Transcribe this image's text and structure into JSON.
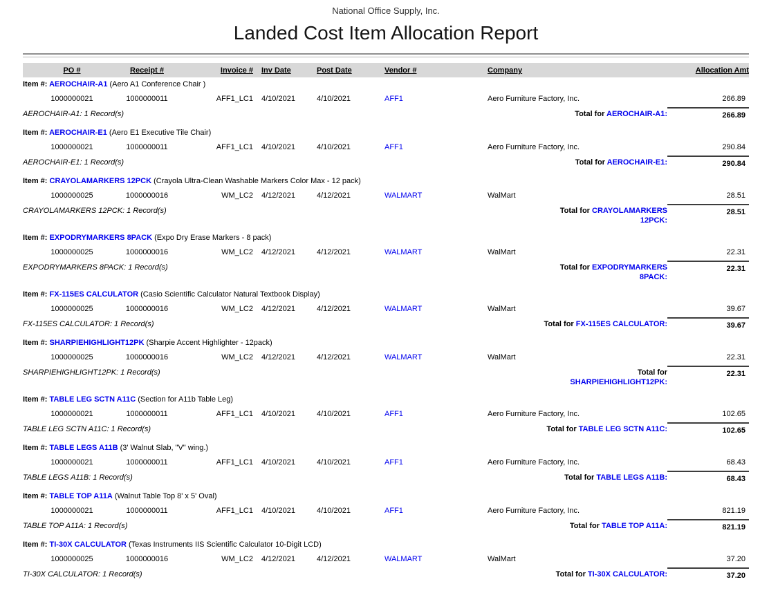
{
  "report": {
    "company_header": "National Office Supply, Inc.",
    "title": "Landed Cost Item Allocation Report",
    "item_label": "Item #:",
    "colors": {
      "link_blue": "#0000ee",
      "header_band": "#d8d8d8",
      "divider_gray": "#8f8f8f"
    },
    "columns": [
      "PO #",
      "Receipt #",
      "Invoice #",
      "Inv Date",
      "Post Date",
      "Vendor #",
      "Company",
      "Allocation Amt"
    ],
    "groups": [
      {
        "item_code": "AEROCHAIR-A1",
        "item_desc": "(Aero A1 Conference Chair )",
        "rows": [
          {
            "po": "1000000021",
            "receipt": "1000000011",
            "invoice": "AFF1_LC1",
            "inv_date": "4/10/2021",
            "post_date": "4/10/2021",
            "vendor": "AFF1",
            "company": "Aero Furniture Factory, Inc.",
            "amount": "266.89"
          }
        ],
        "record_count_line": "AEROCHAIR-A1: 1 Record(s)",
        "total_label_lines": [
          [
            {
              "t": "Total for ",
              "blue": false
            },
            {
              "t": "AEROCHAIR-A1:",
              "blue": true
            }
          ]
        ],
        "total_amount": "266.89"
      },
      {
        "item_code": "AEROCHAIR-E1",
        "item_desc": "(Aero E1 Executive Tile Chair)",
        "rows": [
          {
            "po": "1000000021",
            "receipt": "1000000011",
            "invoice": "AFF1_LC1",
            "inv_date": "4/10/2021",
            "post_date": "4/10/2021",
            "vendor": "AFF1",
            "company": "Aero Furniture Factory, Inc.",
            "amount": "290.84"
          }
        ],
        "record_count_line": "AEROCHAIR-E1: 1 Record(s)",
        "total_label_lines": [
          [
            {
              "t": "Total for ",
              "blue": false
            },
            {
              "t": "AEROCHAIR-E1:",
              "blue": true
            }
          ]
        ],
        "total_amount": "290.84"
      },
      {
        "item_code": "CRAYOLAMARKERS 12PCK",
        "item_desc": "(Crayola Ultra-Clean Washable Markers Color Max - 12 pack)",
        "rows": [
          {
            "po": "1000000025",
            "receipt": "1000000016",
            "invoice": "WM_LC2",
            "inv_date": "4/12/2021",
            "post_date": "4/12/2021",
            "vendor": "WALMART",
            "company": "WalMart",
            "amount": "28.51"
          }
        ],
        "record_count_line": "CRAYOLAMARKERS 12PCK: 1 Record(s)",
        "total_label_lines": [
          [
            {
              "t": "Total for ",
              "blue": false
            },
            {
              "t": "CRAYOLAMARKERS",
              "blue": true
            }
          ],
          [
            {
              "t": "12PCK:",
              "blue": true
            }
          ]
        ],
        "total_amount": "28.51"
      },
      {
        "item_code": "EXPODRYMARKERS 8PACK",
        "item_desc": "(Expo Dry Erase Markers - 8 pack)",
        "rows": [
          {
            "po": "1000000025",
            "receipt": "1000000016",
            "invoice": "WM_LC2",
            "inv_date": "4/12/2021",
            "post_date": "4/12/2021",
            "vendor": "WALMART",
            "company": "WalMart",
            "amount": "22.31"
          }
        ],
        "record_count_line": "EXPODRYMARKERS 8PACK: 1 Record(s)",
        "total_label_lines": [
          [
            {
              "t": "Total for ",
              "blue": false
            },
            {
              "t": "EXPODRYMARKERS",
              "blue": true
            }
          ],
          [
            {
              "t": "8PACK:",
              "blue": true
            }
          ]
        ],
        "total_amount": "22.31"
      },
      {
        "item_code": "FX-115ES CALCULATOR",
        "item_desc": "(Casio Scientific Calculator Natural Textbook Display)",
        "rows": [
          {
            "po": "1000000025",
            "receipt": "1000000016",
            "invoice": "WM_LC2",
            "inv_date": "4/12/2021",
            "post_date": "4/12/2021",
            "vendor": "WALMART",
            "company": "WalMart",
            "amount": "39.67"
          }
        ],
        "record_count_line": "FX-115ES CALCULATOR: 1 Record(s)",
        "total_label_lines": [
          [
            {
              "t": "Total for ",
              "blue": false
            },
            {
              "t": "FX-115ES CALCULATOR:",
              "blue": true
            }
          ]
        ],
        "total_amount": "39.67"
      },
      {
        "item_code": "SHARPIEHIGHLIGHT12PK",
        "item_desc": "(Sharpie Accent Highlighter - 12pack)",
        "rows": [
          {
            "po": "1000000025",
            "receipt": "1000000016",
            "invoice": "WM_LC2",
            "inv_date": "4/12/2021",
            "post_date": "4/12/2021",
            "vendor": "WALMART",
            "company": "WalMart",
            "amount": "22.31"
          }
        ],
        "record_count_line": "SHARPIEHIGHLIGHT12PK: 1 Record(s)",
        "total_label_lines": [
          [
            {
              "t": "Total for",
              "blue": false
            }
          ],
          [
            {
              "t": "SHARPIEHIGHLIGHT12PK:",
              "blue": true
            }
          ]
        ],
        "total_amount": "22.31"
      },
      {
        "item_code": "TABLE LEG SCTN A11C",
        "item_desc": "(Section for A11b Table Leg)",
        "rows": [
          {
            "po": "1000000021",
            "receipt": "1000000011",
            "invoice": "AFF1_LC1",
            "inv_date": "4/10/2021",
            "post_date": "4/10/2021",
            "vendor": "AFF1",
            "company": "Aero Furniture Factory, Inc.",
            "amount": "102.65"
          }
        ],
        "record_count_line": "TABLE LEG SCTN A11C: 1 Record(s)",
        "total_label_lines": [
          [
            {
              "t": "Total for ",
              "blue": false
            },
            {
              "t": "TABLE LEG SCTN A11C:",
              "blue": true
            }
          ]
        ],
        "total_amount": "102.65"
      },
      {
        "item_code": "TABLE LEGS A11B",
        "item_desc": "(3' Walnut Slab, \"V\" wing.)",
        "rows": [
          {
            "po": "1000000021",
            "receipt": "1000000011",
            "invoice": "AFF1_LC1",
            "inv_date": "4/10/2021",
            "post_date": "4/10/2021",
            "vendor": "AFF1",
            "company": "Aero Furniture Factory, Inc.",
            "amount": "68.43"
          }
        ],
        "record_count_line": "TABLE LEGS A11B: 1 Record(s)",
        "total_label_lines": [
          [
            {
              "t": "Total for ",
              "blue": false
            },
            {
              "t": "TABLE LEGS A11B:",
              "blue": true
            }
          ]
        ],
        "total_amount": "68.43"
      },
      {
        "item_code": "TABLE TOP A11A",
        "item_desc": "(Walnut Table Top 8' x 5' Oval)",
        "rows": [
          {
            "po": "1000000021",
            "receipt": "1000000011",
            "invoice": "AFF1_LC1",
            "inv_date": "4/10/2021",
            "post_date": "4/10/2021",
            "vendor": "AFF1",
            "company": "Aero Furniture Factory, Inc.",
            "amount": "821.19"
          }
        ],
        "record_count_line": "TABLE TOP A11A: 1 Record(s)",
        "total_label_lines": [
          [
            {
              "t": "Total for ",
              "blue": false
            },
            {
              "t": "TABLE TOP A11A:",
              "blue": true
            }
          ]
        ],
        "total_amount": "821.19"
      },
      {
        "item_code": "TI-30X CALCULATOR",
        "item_desc": "(Texas Instruments IIS Scientific Calculator 10-Digit LCD)",
        "rows": [
          {
            "po": "1000000025",
            "receipt": "1000000016",
            "invoice": "WM_LC2",
            "inv_date": "4/12/2021",
            "post_date": "4/12/2021",
            "vendor": "WALMART",
            "company": "WalMart",
            "amount": "37.20"
          }
        ],
        "record_count_line": "TI-30X CALCULATOR: 1 Record(s)",
        "total_label_lines": [
          [
            {
              "t": "Total for ",
              "blue": false
            },
            {
              "t": "TI-30X CALCULATOR:",
              "blue": true
            }
          ]
        ],
        "total_amount": "37.20"
      }
    ]
  }
}
